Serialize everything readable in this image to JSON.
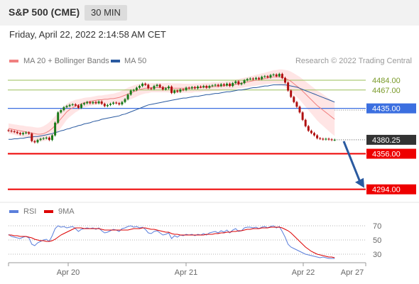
{
  "header": {
    "title": "S&P 500 (CME)",
    "timeframe": "30 MIN"
  },
  "date_line": "Friday, April 22, 2022 2:14:58 AM CET",
  "legend": {
    "ma20": "MA 20 + Bollinger Bands",
    "ma50": "MA 50",
    "rsi": "RSI",
    "nine_ma": "9MA"
  },
  "credit": "Research © 2022 Trading Central",
  "colors": {
    "ma20": "#f08080",
    "ma50": "#2a5aa0",
    "rsi": "#5b7fdb",
    "nine_ma": "#dd0000",
    "up": "#1a7a1a",
    "down": "#b01010",
    "resistance": "#9bbf5a",
    "pivot": "#3b6fe0",
    "support": "#ee0000",
    "last": "#333333",
    "arrow": "#2a5aa0"
  },
  "chart_data": {
    "type": "candlestick",
    "title": "S&P 500 (CME)",
    "interval": "30 MIN",
    "x_ticks": [
      "Apr 20",
      "Apr 21",
      "Apr 22",
      "Apr 27"
    ],
    "ylim": [
      4280,
      4510
    ],
    "levels": [
      {
        "value": 4484.0,
        "label": "4484.00",
        "kind": "resistance"
      },
      {
        "value": 4467.0,
        "label": "4467.00",
        "kind": "resistance"
      },
      {
        "value": 4435.0,
        "label": "4435.00",
        "kind": "pivot"
      },
      {
        "value": 4380.25,
        "label": "4380.25",
        "kind": "last"
      },
      {
        "value": 4356.0,
        "label": "4356.00",
        "kind": "support"
      },
      {
        "value": 4294.0,
        "label": "4294.00",
        "kind": "support"
      }
    ],
    "last_price": 4380.25,
    "target": 4294.0,
    "close": [
      4396,
      4395,
      4394,
      4392,
      4390,
      4392,
      4393,
      4391,
      4378,
      4376,
      4380,
      4382,
      4383,
      4384,
      4380,
      4388,
      4410,
      4428,
      4432,
      4437,
      4439,
      4441,
      4442,
      4440,
      4436,
      4442,
      4444,
      4446,
      4444,
      4446,
      4444,
      4447,
      4443,
      4439,
      4441,
      4443,
      4445,
      4444,
      4442,
      4446,
      4451,
      4459,
      4466,
      4467,
      4471,
      4474,
      4478,
      4476,
      4470,
      4469,
      4474,
      4476,
      4472,
      4468,
      4470,
      4473,
      4462,
      4466,
      4464,
      4468,
      4467,
      4471,
      4470,
      4472,
      4470,
      4473,
      4472,
      4474,
      4471,
      4474,
      4475,
      4476,
      4474,
      4477,
      4475,
      4478,
      4474,
      4479,
      4482,
      4477,
      4479,
      4484,
      4486,
      4487,
      4486,
      4488,
      4486,
      4490,
      4491,
      4489,
      4493,
      4494,
      4491,
      4495,
      4488,
      4480,
      4466,
      4455,
      4446,
      4438,
      4428,
      4415,
      4404,
      4396,
      4392,
      4388,
      4383,
      4382,
      4381,
      4382,
      4381,
      4380,
      4380.25
    ],
    "ma20": [
      4400,
      4399,
      4398,
      4397,
      4396,
      4395,
      4394,
      4393,
      4392,
      4391,
      4390,
      4390,
      4391,
      4393,
      4396,
      4400,
      4405,
      4411,
      4417,
      4423,
      4429,
      4433,
      4436,
      4439,
      4441,
      4443,
      4445,
      4446,
      4447,
      4448,
      4449,
      4450,
      4450,
      4451,
      4451,
      4452,
      4452,
      4453,
      4454,
      4456,
      4458,
      4460,
      4462,
      4464,
      4466,
      4468,
      4469,
      4470,
      4470,
      4471,
      4471,
      4471,
      4471,
      4471,
      4471,
      4471,
      4470,
      4470,
      4470,
      4470,
      4470,
      4470,
      4470,
      4470,
      4471,
      4471,
      4471,
      4472,
      4472,
      4472,
      4473,
      4473,
      4473,
      4474,
      4474,
      4475,
      4475,
      4476,
      4477,
      4478,
      4479,
      4480,
      4481,
      4482,
      4483,
      4484,
      4485,
      4486,
      4487,
      4488,
      4489,
      4490,
      4490,
      4490,
      4489,
      4487,
      4485,
      4482,
      4478,
      4474,
      4470,
      4465,
      4460,
      4455,
      4450,
      4445,
      4440,
      4436,
      4432,
      4428,
      4424,
      4420,
      4416
    ],
    "ma50": [
      4381,
      4381,
      4382,
      4382,
      4383,
      4383,
      4384,
      4385,
      4385,
      4386,
      4386,
      4387,
      4388,
      4389,
      4390,
      4391,
      4393,
      4394,
      4396,
      4397,
      4399,
      4400,
      4402,
      4403,
      4405,
      4406,
      4408,
      4409,
      4410,
      4412,
      4413,
      4414,
      4416,
      4417,
      4418,
      4419,
      4420,
      4421,
      4422,
      4424,
      4425,
      4427,
      4429,
      4431,
      4433,
      4435,
      4437,
      4439,
      4441,
      4442,
      4443,
      4444,
      4445,
      4446,
      4447,
      4448,
      4449,
      4450,
      4451,
      4452,
      4453,
      4453,
      4454,
      4455,
      4456,
      4456,
      4457,
      4458,
      4459,
      4459,
      4460,
      4461,
      4461,
      4462,
      4463,
      4464,
      4464,
      4465,
      4466,
      4467,
      4467,
      4468,
      4469,
      4470,
      4471,
      4471,
      4472,
      4473,
      4474,
      4474,
      4475,
      4476,
      4476,
      4476,
      4476,
      4476,
      4475,
      4474,
      4473,
      4472,
      4470,
      4468,
      4466,
      4464,
      4462,
      4460,
      4458,
      4456,
      4454,
      4452,
      4450,
      4448,
      4446
    ],
    "bb_width": [
      18,
      18,
      18,
      19,
      19,
      20,
      20,
      21,
      22,
      22,
      23,
      24,
      26,
      28,
      30,
      32,
      33,
      33,
      32,
      30,
      28,
      26,
      24,
      22,
      20,
      18,
      17,
      16,
      15,
      15,
      15,
      15,
      15,
      15,
      16,
      16,
      17,
      18,
      19,
      20,
      21,
      22,
      22,
      22,
      21,
      20,
      19,
      18,
      17,
      16,
      16,
      16,
      16,
      16,
      16,
      17,
      17,
      17,
      17,
      17,
      16,
      16,
      16,
      16,
      15,
      15,
      15,
      15,
      15,
      15,
      15,
      15,
      15,
      15,
      15,
      15,
      15,
      15,
      16,
      16,
      17,
      17,
      17,
      18,
      18,
      19,
      19,
      20,
      20,
      21,
      22,
      23,
      24,
      26,
      28,
      30,
      32,
      34,
      36,
      38,
      40,
      42,
      44,
      46,
      48,
      50,
      52,
      54,
      55,
      56,
      57,
      58,
      58
    ],
    "rsi": {
      "ticks": [
        70,
        50,
        30
      ],
      "ylim": [
        20,
        78
      ],
      "values": [
        58,
        55,
        54,
        53,
        52,
        54,
        55,
        53,
        44,
        42,
        46,
        48,
        50,
        51,
        48,
        56,
        66,
        70,
        68,
        69,
        67,
        68,
        69,
        66,
        62,
        65,
        66,
        67,
        66,
        67,
        65,
        67,
        63,
        60,
        61,
        63,
        65,
        64,
        62,
        66,
        67,
        69,
        70,
        68,
        69,
        67,
        68,
        65,
        60,
        59,
        62,
        63,
        60,
        57,
        58,
        60,
        52,
        56,
        54,
        57,
        56,
        58,
        57,
        58,
        56,
        58,
        57,
        59,
        57,
        60,
        61,
        62,
        60,
        63,
        61,
        64,
        60,
        64,
        66,
        62,
        63,
        67,
        68,
        68,
        67,
        68,
        66,
        68,
        69,
        67,
        69,
        70,
        67,
        69,
        62,
        54,
        44,
        40,
        38,
        36,
        34,
        32,
        30,
        29,
        28,
        27,
        26,
        25,
        26,
        25,
        24,
        24,
        24
      ],
      "ma9": [
        57,
        57,
        56,
        56,
        55,
        55,
        55,
        54,
        53,
        51,
        50,
        49,
        49,
        48,
        48,
        49,
        51,
        54,
        57,
        59,
        61,
        63,
        65,
        67,
        67,
        67,
        66,
        66,
        66,
        66,
        66,
        66,
        65,
        64,
        64,
        64,
        64,
        64,
        64,
        64,
        64,
        64,
        65,
        66,
        66,
        66,
        67,
        67,
        66,
        65,
        65,
        64,
        63,
        62,
        61,
        61,
        59,
        58,
        58,
        57,
        57,
        57,
        57,
        57,
        57,
        57,
        57,
        57,
        58,
        58,
        58,
        59,
        59,
        60,
        60,
        61,
        61,
        62,
        62,
        63,
        63,
        64,
        65,
        65,
        66,
        66,
        66,
        67,
        67,
        67,
        68,
        68,
        68,
        68,
        67,
        65,
        63,
        60,
        56,
        52,
        48,
        44,
        40,
        37,
        34,
        32,
        30,
        29,
        28,
        27,
        26,
        26,
        25
      ]
    }
  }
}
